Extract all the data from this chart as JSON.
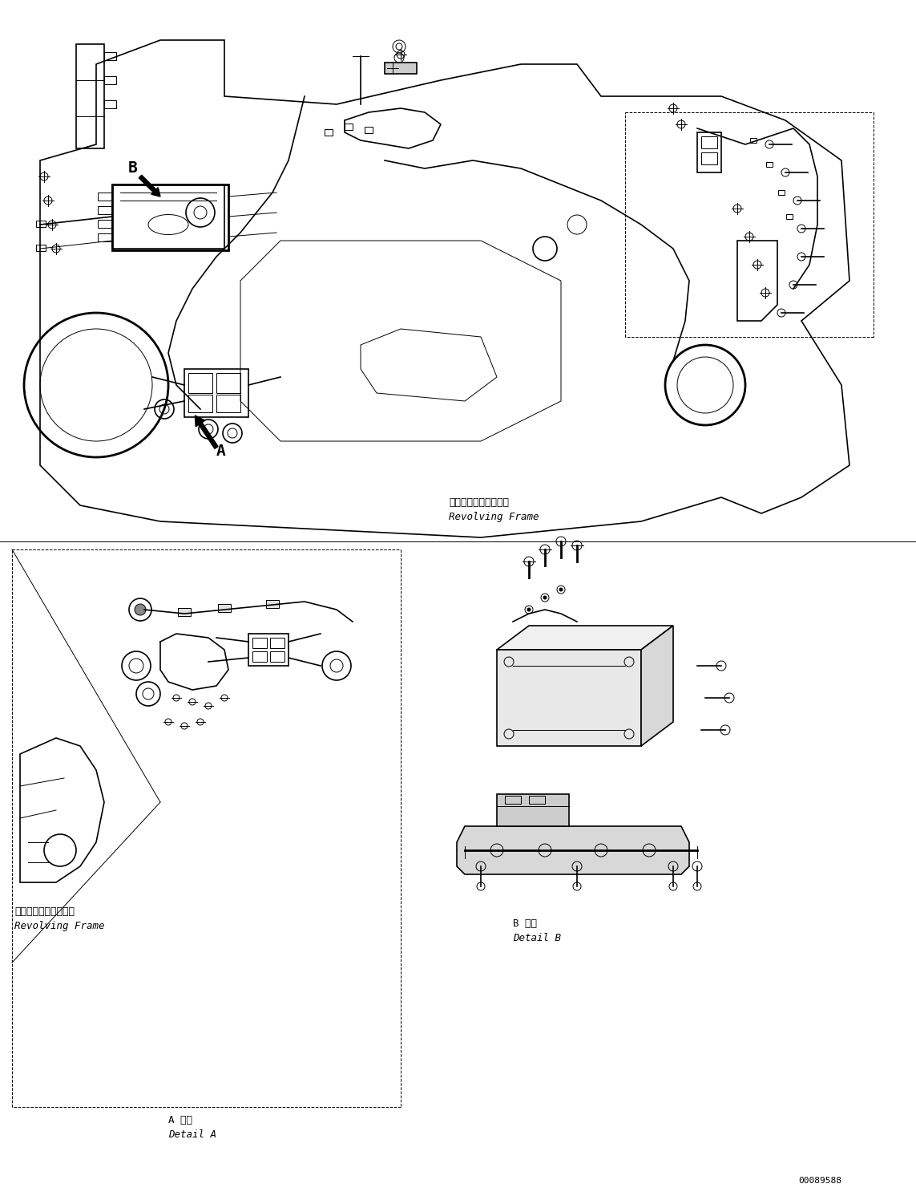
{
  "background_color": "#ffffff",
  "fig_width": 11.43,
  "fig_height": 14.91,
  "dpi": 100,
  "labels": {
    "revolving_frame_1_jp": "レボルビングフレーム",
    "revolving_frame_1_en": "Revolving Frame",
    "revolving_frame_2_jp": "レボルビングフレーム",
    "revolving_frame_2_en": "Revolving Frame",
    "detail_a_jp": "A 詳細",
    "detail_a_en": "Detail A",
    "detail_b_jp": "B 詳細",
    "detail_b_en": "Detail B",
    "label_A": "A",
    "label_B": "B",
    "part_number": "00089588"
  },
  "font_sizes": {
    "label": 9,
    "title": 10,
    "part_number": 8,
    "letter_label": 14
  },
  "colors": {
    "line": "#000000",
    "background": "#ffffff",
    "fill_light": "#e8e8e8",
    "fill_dark": "#555555"
  }
}
